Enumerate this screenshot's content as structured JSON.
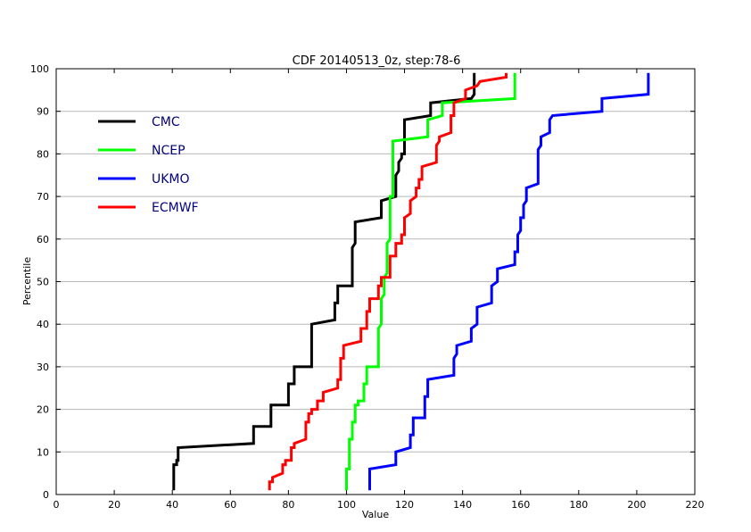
{
  "chart_data": {
    "type": "line",
    "title": "CDF 20140513_0z, step:78-6",
    "xlabel": "Value",
    "ylabel": "Percentile",
    "xlim": [
      0,
      220
    ],
    "ylim": [
      0,
      100
    ],
    "xticks": [
      0,
      20,
      40,
      60,
      80,
      100,
      120,
      140,
      160,
      180,
      200,
      220
    ],
    "yticks": [
      0,
      10,
      20,
      30,
      40,
      50,
      60,
      70,
      80,
      90,
      100
    ],
    "grid": "horizontal",
    "legend_position": "top-left",
    "series": [
      {
        "name": "CMC",
        "color": "#000000",
        "points": [
          [
            40.5,
            1
          ],
          [
            40.5,
            7
          ],
          [
            41.5,
            7
          ],
          [
            41.5,
            8
          ],
          [
            42,
            8
          ],
          [
            42,
            11
          ],
          [
            68,
            12
          ],
          [
            68,
            16
          ],
          [
            74,
            16
          ],
          [
            74,
            21
          ],
          [
            80,
            21
          ],
          [
            80,
            26
          ],
          [
            82,
            26
          ],
          [
            82,
            30
          ],
          [
            88,
            30
          ],
          [
            88,
            40
          ],
          [
            96,
            41
          ],
          [
            96,
            45
          ],
          [
            97,
            45
          ],
          [
            97,
            49
          ],
          [
            102,
            49
          ],
          [
            102,
            58
          ],
          [
            103,
            59
          ],
          [
            103,
            64
          ],
          [
            112,
            65
          ],
          [
            112,
            69
          ],
          [
            117,
            70
          ],
          [
            117,
            75
          ],
          [
            118,
            76
          ],
          [
            118,
            78
          ],
          [
            119,
            79
          ],
          [
            119,
            80
          ],
          [
            120,
            80
          ],
          [
            120,
            88
          ],
          [
            129,
            89
          ],
          [
            129,
            92
          ],
          [
            143,
            93
          ],
          [
            144,
            94
          ],
          [
            144,
            99
          ]
        ]
      },
      {
        "name": "NCEP",
        "color": "#00ff00",
        "points": [
          [
            100,
            1
          ],
          [
            100,
            6
          ],
          [
            101,
            6
          ],
          [
            101,
            13
          ],
          [
            102,
            13
          ],
          [
            102,
            17
          ],
          [
            103,
            17
          ],
          [
            103,
            21
          ],
          [
            104,
            21
          ],
          [
            104,
            22
          ],
          [
            106,
            22
          ],
          [
            106,
            26
          ],
          [
            107,
            26
          ],
          [
            107,
            30
          ],
          [
            111,
            30
          ],
          [
            111,
            39
          ],
          [
            112,
            40
          ],
          [
            112,
            46
          ],
          [
            113,
            47
          ],
          [
            113,
            51
          ],
          [
            114,
            52
          ],
          [
            114,
            59
          ],
          [
            115,
            60
          ],
          [
            115,
            70
          ],
          [
            116,
            70
          ],
          [
            116,
            83
          ],
          [
            128,
            84
          ],
          [
            128,
            88
          ],
          [
            133,
            89
          ],
          [
            133,
            92
          ],
          [
            158,
            93
          ],
          [
            158,
            99
          ]
        ]
      },
      {
        "name": "UKMO",
        "color": "#0000ff",
        "points": [
          [
            108,
            1
          ],
          [
            108,
            6
          ],
          [
            117,
            7
          ],
          [
            117,
            10
          ],
          [
            122,
            11
          ],
          [
            122,
            14
          ],
          [
            123,
            14
          ],
          [
            123,
            18
          ],
          [
            127,
            18
          ],
          [
            127,
            23
          ],
          [
            128,
            23
          ],
          [
            128,
            27
          ],
          [
            137,
            28
          ],
          [
            137,
            32
          ],
          [
            138,
            33
          ],
          [
            138,
            35
          ],
          [
            143,
            36
          ],
          [
            143,
            39
          ],
          [
            145,
            40
          ],
          [
            145,
            44
          ],
          [
            150,
            45
          ],
          [
            150,
            49
          ],
          [
            152,
            50
          ],
          [
            152,
            53
          ],
          [
            158,
            54
          ],
          [
            158,
            57
          ],
          [
            159,
            57
          ],
          [
            159,
            61
          ],
          [
            160,
            62
          ],
          [
            160,
            65
          ],
          [
            161,
            65
          ],
          [
            161,
            68
          ],
          [
            162,
            69
          ],
          [
            162,
            72
          ],
          [
            166,
            73
          ],
          [
            166,
            81
          ],
          [
            167,
            82
          ],
          [
            167,
            84
          ],
          [
            170,
            85
          ],
          [
            170,
            88
          ],
          [
            171,
            89
          ],
          [
            188,
            90
          ],
          [
            188,
            93
          ],
          [
            204,
            94
          ],
          [
            204,
            99
          ]
        ]
      },
      {
        "name": "ECMWF",
        "color": "#ff0000",
        "points": [
          [
            73.5,
            1
          ],
          [
            73.5,
            3
          ],
          [
            74.5,
            3
          ],
          [
            74.5,
            4
          ],
          [
            78,
            5
          ],
          [
            78,
            7
          ],
          [
            79,
            7
          ],
          [
            79,
            8
          ],
          [
            81,
            8
          ],
          [
            81,
            11
          ],
          [
            82,
            11
          ],
          [
            82,
            12
          ],
          [
            86,
            13
          ],
          [
            86,
            17
          ],
          [
            87,
            17
          ],
          [
            87,
            19
          ],
          [
            88,
            19
          ],
          [
            88,
            20
          ],
          [
            90,
            20
          ],
          [
            90,
            22
          ],
          [
            92,
            22
          ],
          [
            92,
            24
          ],
          [
            97,
            25
          ],
          [
            97,
            27
          ],
          [
            98,
            27
          ],
          [
            98,
            32
          ],
          [
            99,
            32
          ],
          [
            99,
            35
          ],
          [
            105,
            36
          ],
          [
            105,
            39
          ],
          [
            107,
            39
          ],
          [
            107,
            43
          ],
          [
            108,
            43
          ],
          [
            108,
            46
          ],
          [
            111,
            46
          ],
          [
            111,
            49
          ],
          [
            112,
            49
          ],
          [
            112,
            51
          ],
          [
            115,
            51
          ],
          [
            115,
            56
          ],
          [
            117,
            56
          ],
          [
            117,
            59
          ],
          [
            119,
            59
          ],
          [
            119,
            61
          ],
          [
            120,
            61
          ],
          [
            120,
            65
          ],
          [
            122,
            66
          ],
          [
            122,
            69
          ],
          [
            124,
            70
          ],
          [
            124,
            72
          ],
          [
            125,
            72
          ],
          [
            125,
            74
          ],
          [
            126,
            74
          ],
          [
            126,
            77
          ],
          [
            131,
            78
          ],
          [
            131,
            82
          ],
          [
            132,
            83
          ],
          [
            132,
            84
          ],
          [
            136,
            85
          ],
          [
            136,
            89
          ],
          [
            137,
            89
          ],
          [
            137,
            92
          ],
          [
            141,
            93
          ],
          [
            141,
            95
          ],
          [
            145,
            96
          ],
          [
            146,
            97
          ],
          [
            155,
            98
          ],
          [
            155,
            99
          ]
        ]
      }
    ]
  }
}
